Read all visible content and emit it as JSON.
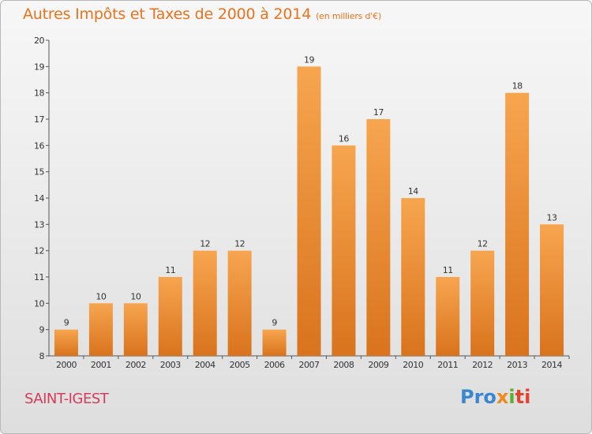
{
  "header": {
    "title": "Autres Impôts et Taxes de 2000 à 2014",
    "unit": "(en milliers d'€)"
  },
  "footer": {
    "commune": "SAINT-IGEST",
    "logo": {
      "part1": "Pro",
      "part2": "x",
      "part3": "i",
      "part4": "ti"
    }
  },
  "colors": {
    "bar_top": "#f7a54f",
    "bar_bottom": "#d9731d",
    "title": "#e8731e",
    "commune": "#d43c5a"
  },
  "chart_data": {
    "type": "bar",
    "title": "Autres Impôts et Taxes de 2000 à 2014",
    "categories": [
      "2000",
      "2001",
      "2002",
      "2003",
      "2004",
      "2005",
      "2006",
      "2007",
      "2008",
      "2009",
      "2010",
      "2011",
      "2012",
      "2013",
      "2014"
    ],
    "values": [
      9,
      10,
      10,
      11,
      12,
      12,
      9,
      19,
      16,
      17,
      14,
      11,
      12,
      18,
      13
    ],
    "ylim": [
      8,
      20
    ],
    "yticks": [
      8,
      9,
      10,
      11,
      12,
      13,
      14,
      15,
      16,
      17,
      18,
      19,
      20
    ],
    "grid": false,
    "data_labels": true
  }
}
